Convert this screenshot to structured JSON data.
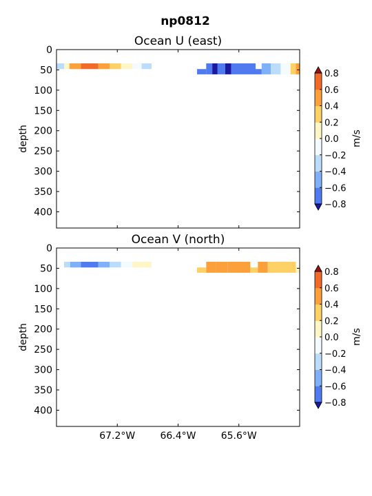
{
  "figure": {
    "suptitle": "np0812"
  },
  "colorbar": {
    "label": "m/s",
    "levels": [
      -0.8,
      -0.6,
      -0.4,
      -0.2,
      0.0,
      0.2,
      0.4,
      0.6,
      0.8
    ],
    "tick_labels": [
      "−0.8",
      "−0.6",
      "−0.4",
      "−0.2",
      "0.0",
      "0.2",
      "0.4",
      "0.6",
      "0.8"
    ],
    "colors": [
      "#2e3fe0",
      "#4f7af0",
      "#7fb0f8",
      "#bcdcfb",
      "#f4fbff",
      "#fef6c6",
      "#fed166",
      "#fca03c",
      "#f26a2a",
      "#d82c16"
    ],
    "under_color": "#1a1aa0",
    "over_color": "#a01010",
    "extend": "both"
  },
  "chart_data": [
    {
      "type": "heatmap",
      "title": "Ocean U (east)",
      "ylabel": "depth",
      "xlabel": "",
      "xlim": [
        -68.0,
        -64.8
      ],
      "ylim": [
        440,
        0
      ],
      "y_inverted": true,
      "yticks": [
        0,
        50,
        100,
        150,
        200,
        250,
        300,
        350,
        400
      ],
      "xticks": [
        -67.2,
        -66.4,
        -65.6
      ],
      "xtick_labels": [],
      "colorbar_label": "m/s",
      "cells": [
        {
          "x0": -68.0,
          "x1": -67.9,
          "d0": 34,
          "d1": 48,
          "value": -0.25
        },
        {
          "x0": -67.9,
          "x1": -67.83,
          "d0": 34,
          "d1": 48,
          "value": 0.1
        },
        {
          "x0": -67.83,
          "x1": -67.68,
          "d0": 34,
          "d1": 48,
          "value": 0.5
        },
        {
          "x0": -67.68,
          "x1": -67.45,
          "d0": 34,
          "d1": 48,
          "value": 0.65
        },
        {
          "x0": -67.45,
          "x1": -67.3,
          "d0": 34,
          "d1": 48,
          "value": 0.5
        },
        {
          "x0": -67.3,
          "x1": -67.15,
          "d0": 34,
          "d1": 48,
          "value": 0.3
        },
        {
          "x0": -67.15,
          "x1": -67.0,
          "d0": 34,
          "d1": 48,
          "value": 0.05
        },
        {
          "x0": -67.0,
          "x1": -66.88,
          "d0": 34,
          "d1": 48,
          "value": -0.15
        },
        {
          "x0": -66.88,
          "x1": -66.75,
          "d0": 34,
          "d1": 48,
          "value": -0.3
        },
        {
          "x0": -66.15,
          "x1": -66.03,
          "d0": 48,
          "d1": 61,
          "value": -0.75
        },
        {
          "x0": -66.03,
          "x1": -65.95,
          "d0": 34,
          "d1": 61,
          "value": -0.75
        },
        {
          "x0": -65.95,
          "x1": -65.88,
          "d0": 34,
          "d1": 61,
          "value": -0.9
        },
        {
          "x0": -65.88,
          "x1": -65.78,
          "d0": 34,
          "d1": 61,
          "value": -0.75
        },
        {
          "x0": -65.78,
          "x1": -65.7,
          "d0": 34,
          "d1": 61,
          "value": -0.9
        },
        {
          "x0": -65.7,
          "x1": -65.38,
          "d0": 34,
          "d1": 61,
          "value": -0.75
        },
        {
          "x0": -65.38,
          "x1": -65.3,
          "d0": 48,
          "d1": 61,
          "value": -0.75
        },
        {
          "x0": -65.3,
          "x1": -65.18,
          "d0": 34,
          "d1": 61,
          "value": -0.5
        },
        {
          "x0": -65.18,
          "x1": -65.05,
          "d0": 34,
          "d1": 61,
          "value": -0.3
        },
        {
          "x0": -65.05,
          "x1": -64.92,
          "d0": 34,
          "d1": 61,
          "value": -0.1
        },
        {
          "x0": -64.92,
          "x1": -64.85,
          "d0": 34,
          "d1": 61,
          "value": 0.3
        },
        {
          "x0": -64.85,
          "x1": -64.8,
          "d0": 34,
          "d1": 61,
          "value": 0.45
        }
      ]
    },
    {
      "type": "heatmap",
      "title": "Ocean V (north)",
      "ylabel": "depth",
      "xlabel": "",
      "xlim": [
        -68.0,
        -64.8
      ],
      "ylim": [
        440,
        0
      ],
      "y_inverted": true,
      "yticks": [
        0,
        50,
        100,
        150,
        200,
        250,
        300,
        350,
        400
      ],
      "xticks": [
        -67.2,
        -66.4,
        -65.6
      ],
      "xtick_labels": [
        "67.2°W",
        "66.4°W",
        "65.6°W"
      ],
      "colorbar_label": "m/s",
      "cells": [
        {
          "x0": -67.9,
          "x1": -67.82,
          "d0": 34,
          "d1": 48,
          "value": -0.3
        },
        {
          "x0": -67.82,
          "x1": -67.68,
          "d0": 34,
          "d1": 48,
          "value": -0.5
        },
        {
          "x0": -67.68,
          "x1": -67.45,
          "d0": 34,
          "d1": 48,
          "value": -0.7
        },
        {
          "x0": -67.45,
          "x1": -67.3,
          "d0": 34,
          "d1": 48,
          "value": -0.5
        },
        {
          "x0": -67.3,
          "x1": -67.15,
          "d0": 34,
          "d1": 48,
          "value": -0.3
        },
        {
          "x0": -67.15,
          "x1": -67.0,
          "d0": 34,
          "d1": 48,
          "value": -0.1
        },
        {
          "x0": -67.0,
          "x1": -66.75,
          "d0": 34,
          "d1": 48,
          "value": 0.1
        },
        {
          "x0": -66.15,
          "x1": -66.03,
          "d0": 48,
          "d1": 61,
          "value": 0.3
        },
        {
          "x0": -66.03,
          "x1": -65.9,
          "d0": 34,
          "d1": 61,
          "value": 0.45
        },
        {
          "x0": -65.9,
          "x1": -65.75,
          "d0": 34,
          "d1": 61,
          "value": 0.5
        },
        {
          "x0": -65.75,
          "x1": -65.45,
          "d0": 34,
          "d1": 61,
          "value": 0.45
        },
        {
          "x0": -65.45,
          "x1": -65.35,
          "d0": 48,
          "d1": 61,
          "value": 0.3
        },
        {
          "x0": -65.35,
          "x1": -65.22,
          "d0": 34,
          "d1": 61,
          "value": 0.45
        },
        {
          "x0": -65.22,
          "x1": -64.85,
          "d0": 34,
          "d1": 61,
          "value": 0.3
        },
        {
          "x0": -64.85,
          "x1": -64.8,
          "d0": 48,
          "d1": 61,
          "value": 0.1
        }
      ]
    }
  ]
}
